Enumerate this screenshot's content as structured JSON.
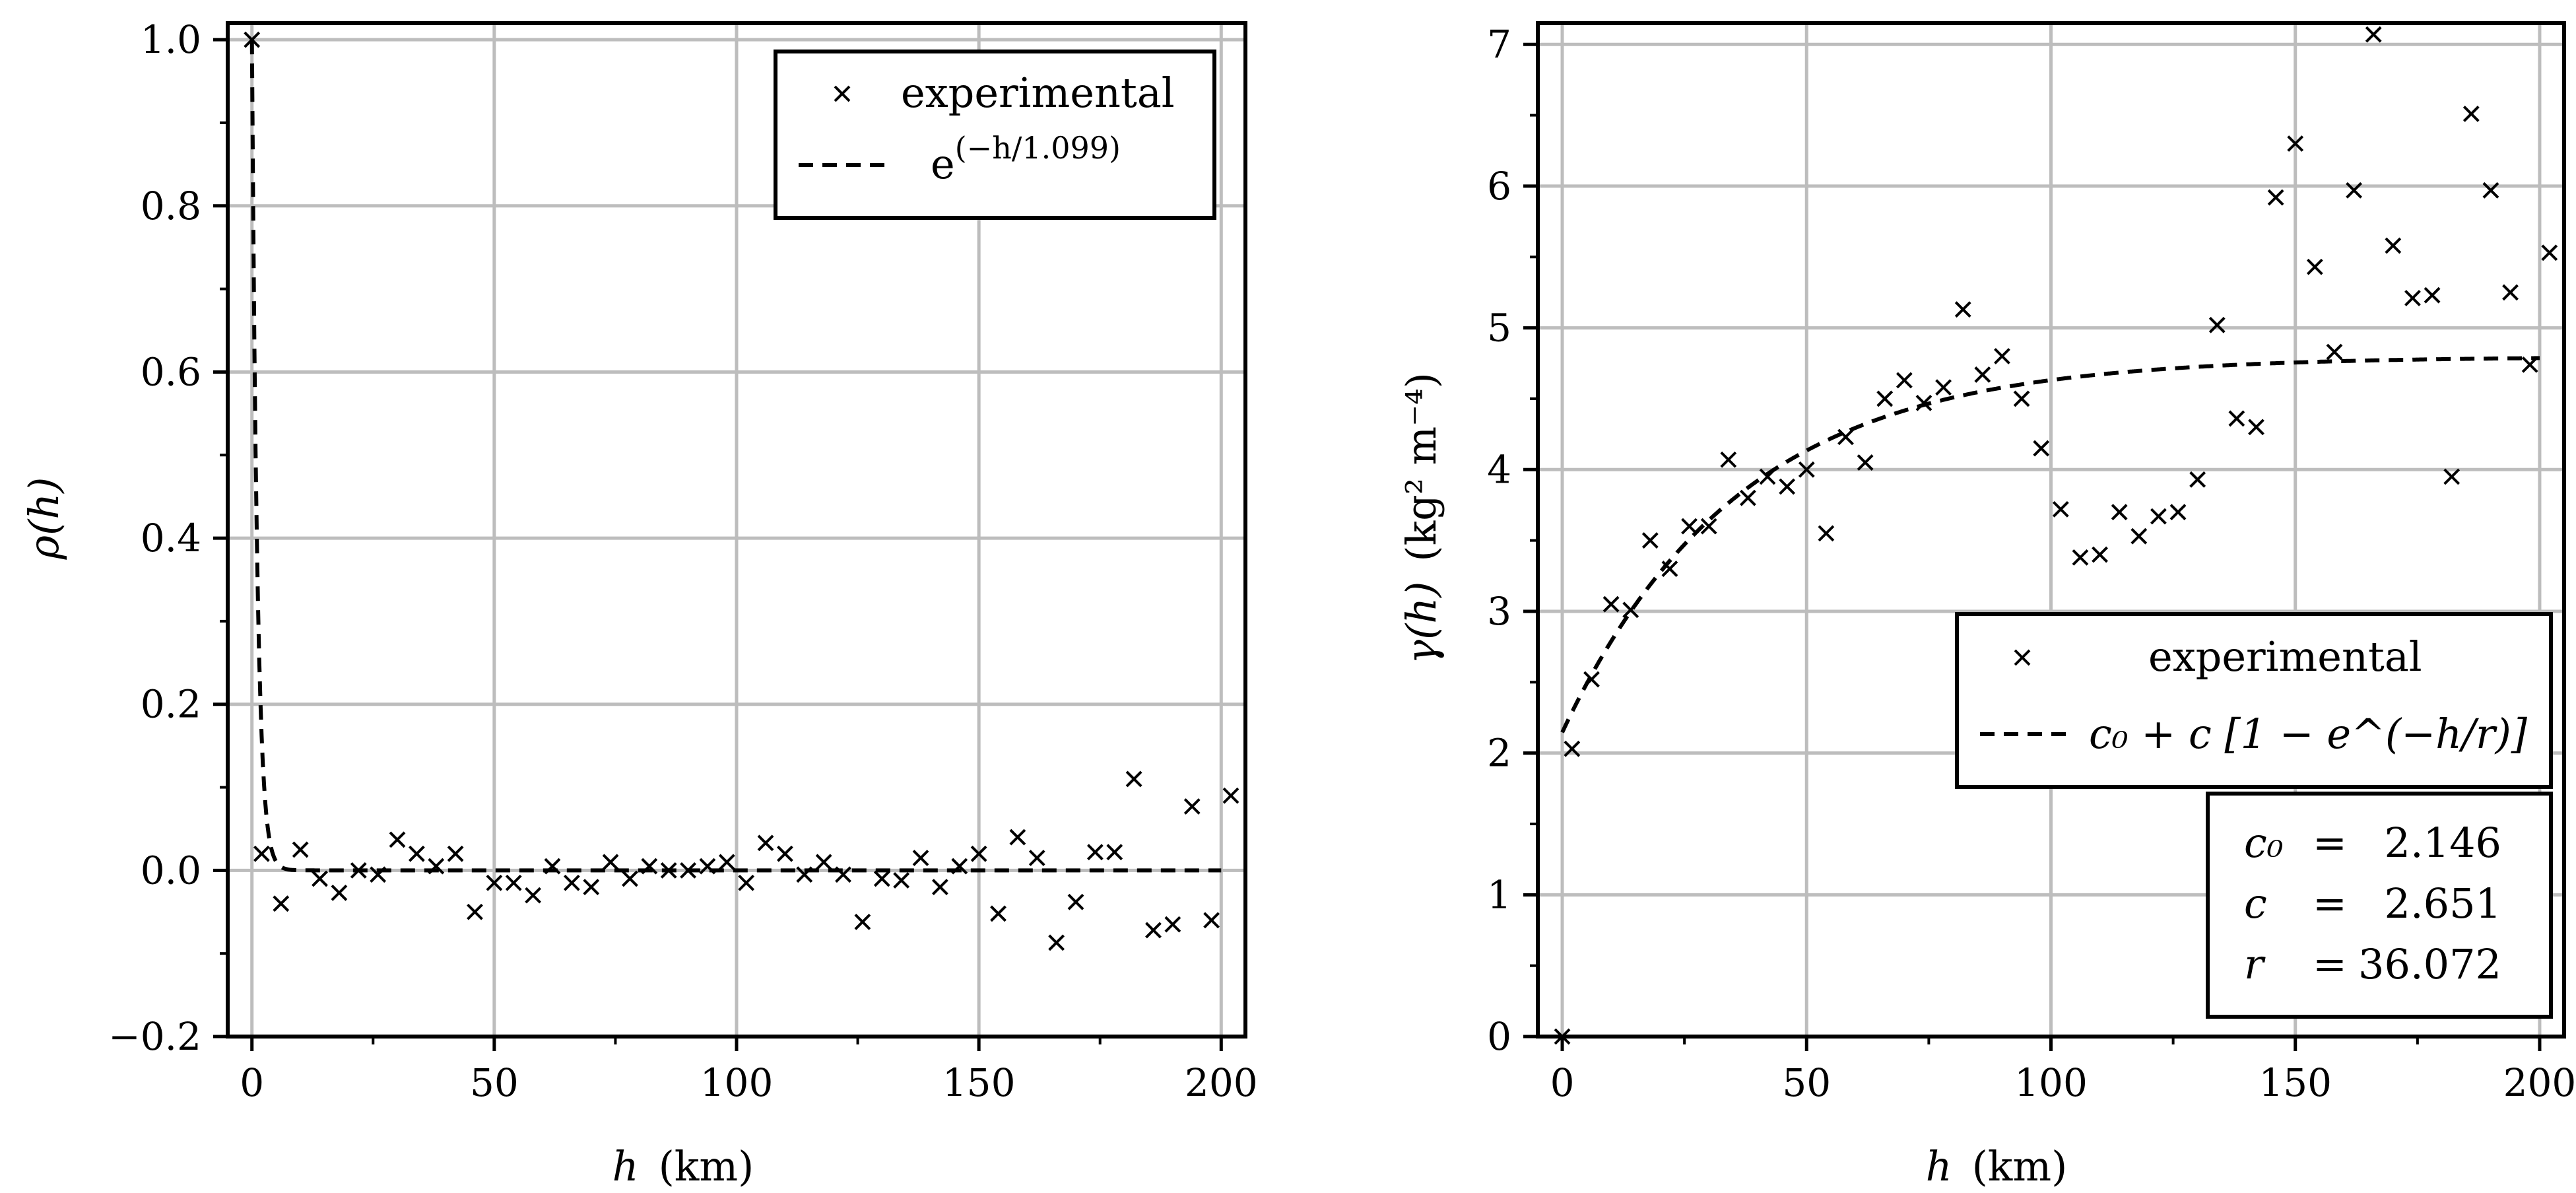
{
  "chart_data": [
    {
      "type": "scatter",
      "xlabel": "h  (km)",
      "ylabel": "ρ(h)",
      "xlim": [
        -5,
        205
      ],
      "ylim": [
        -0.2,
        1.02
      ],
      "xticks": [
        0,
        50,
        100,
        150,
        200
      ],
      "yticks": [
        -0.2,
        0.0,
        0.2,
        0.4,
        0.6,
        0.8,
        1.0
      ],
      "ytick_labels": [
        "−0.2",
        "0.0",
        "0.2",
        "0.4",
        "0.6",
        "0.8",
        "1.0"
      ],
      "grid": true,
      "legend_position": "top-right",
      "series": [
        {
          "name": "experimental",
          "marker": "x",
          "x": [
            0,
            2,
            6,
            10,
            14,
            18,
            22,
            26,
            30,
            34,
            38,
            42,
            46,
            50,
            54,
            58,
            62,
            66,
            70,
            74,
            78,
            82,
            86,
            90,
            94,
            98,
            102,
            106,
            110,
            114,
            118,
            122,
            126,
            130,
            134,
            138,
            142,
            146,
            150,
            154,
            158,
            162,
            166,
            170,
            174,
            178,
            182,
            186,
            190,
            194,
            198,
            202
          ],
          "y": [
            1.0,
            0.02,
            -0.04,
            0.025,
            -0.01,
            -0.027,
            0.0,
            -0.005,
            0.037,
            0.02,
            0.005,
            0.02,
            -0.05,
            -0.015,
            -0.015,
            -0.03,
            0.005,
            -0.015,
            -0.02,
            0.01,
            -0.01,
            0.005,
            0.0,
            0.0,
            0.005,
            0.01,
            -0.015,
            0.033,
            0.02,
            -0.005,
            0.01,
            -0.005,
            -0.062,
            -0.01,
            -0.012,
            0.015,
            -0.02,
            0.005,
            0.02,
            -0.052,
            0.04,
            0.015,
            -0.087,
            -0.038,
            0.022,
            0.022,
            0.11,
            -0.072,
            -0.065,
            0.077,
            -0.06,
            0.09
          ]
        },
        {
          "name": "e^(−h/1.099)",
          "style": "dashed",
          "function": "exp",
          "range": 1.099
        }
      ],
      "legend": [
        {
          "label": "experimental"
        },
        {
          "label_base": "e",
          "label_exp": "(−h/1.099)"
        }
      ]
    },
    {
      "type": "scatter",
      "xlabel": "h  (km)",
      "ylabel": "γ(h)  (kg² m⁻⁴)",
      "xlim": [
        -5,
        205
      ],
      "ylim": [
        0,
        7.15
      ],
      "xticks": [
        0,
        50,
        100,
        150,
        200
      ],
      "yticks": [
        0,
        1,
        2,
        3,
        4,
        5,
        6,
        7
      ],
      "ytick_labels": [
        "0",
        "1",
        "2",
        "3",
        "4",
        "5",
        "6",
        "7"
      ],
      "grid": true,
      "legend_position": "lower-right",
      "series": [
        {
          "name": "experimental",
          "marker": "x",
          "x": [
            0,
            2,
            6,
            10,
            14,
            18,
            22,
            26,
            30,
            34,
            38,
            42,
            46,
            50,
            54,
            58,
            62,
            66,
            70,
            74,
            78,
            82,
            86,
            90,
            94,
            98,
            102,
            106,
            110,
            114,
            118,
            122,
            126,
            130,
            134,
            138,
            142,
            146,
            150,
            154,
            158,
            162,
            166,
            170,
            174,
            178,
            182,
            186,
            190,
            194,
            198,
            202
          ],
          "y": [
            0.0,
            2.03,
            2.52,
            3.05,
            3.01,
            3.5,
            3.3,
            3.6,
            3.6,
            4.07,
            3.8,
            3.95,
            3.88,
            4.0,
            3.55,
            4.23,
            4.05,
            4.5,
            4.63,
            4.47,
            4.58,
            5.13,
            4.67,
            4.8,
            4.5,
            4.15,
            3.72,
            3.38,
            3.4,
            3.7,
            3.53,
            3.67,
            3.7,
            3.93,
            5.02,
            4.36,
            4.3,
            5.92,
            6.3,
            5.43,
            4.83,
            5.97,
            7.07,
            5.58,
            5.21,
            5.23,
            3.95,
            6.51,
            5.97,
            5.25,
            4.74,
            5.53
          ]
        },
        {
          "name": "c0 + c[1 − e^(−h/r)]",
          "style": "dashed",
          "function": "exponential-variogram",
          "c0": 2.146,
          "c": 2.651,
          "r": 36.072
        }
      ],
      "legend": [
        {
          "label": "experimental"
        },
        {
          "label": "c₀ + c [1 − e^(−h/r)]"
        }
      ],
      "parameters": [
        {
          "name": "c₀",
          "eq": "=",
          "value": "2.146"
        },
        {
          "name": "c",
          "eq": "=",
          "value": "2.651"
        },
        {
          "name": "r",
          "eq": "=",
          "value": "36.072"
        }
      ]
    }
  ]
}
